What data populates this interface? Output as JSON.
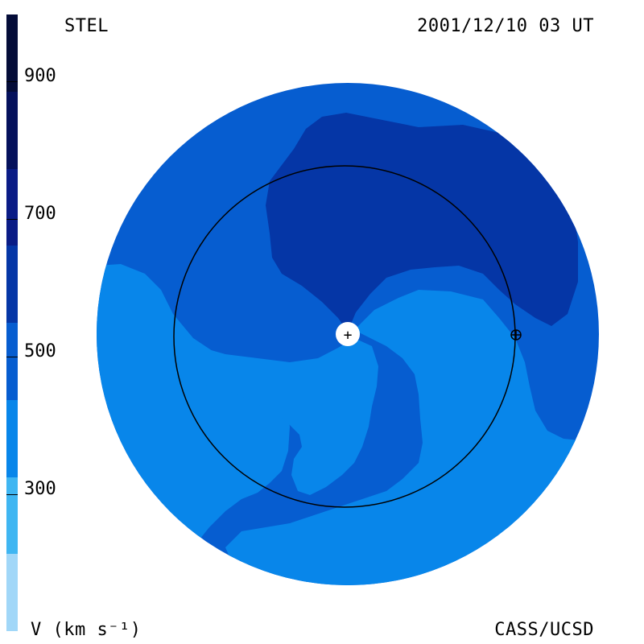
{
  "labels": {
    "left": "STEL",
    "right": "2001/12/10 03 UT",
    "bottom_left": "V (km s⁻¹)",
    "bottom_right": "CASS/UCSD"
  },
  "colorbar": {
    "levels": [
      {
        "color": "#040c38"
      },
      {
        "color": "#05115c"
      },
      {
        "color": "#0a1c86"
      },
      {
        "color": "#0536a6"
      },
      {
        "color": "#065dd0"
      },
      {
        "color": "#0886ea"
      },
      {
        "color": "#3fb6f2"
      },
      {
        "color": "#a1d7f8"
      }
    ],
    "ticks": [
      {
        "label": "900",
        "value": 900
      },
      {
        "label": "700",
        "value": 700
      },
      {
        "label": "500",
        "value": 500
      },
      {
        "label": "300",
        "value": 300
      }
    ]
  },
  "map_colors": {
    "background_disk": "#065dd0",
    "high_speed": "#0536a6",
    "low_speed": "#0886ea",
    "sun": "#ffffff",
    "orbit": "#000000"
  },
  "markers": {
    "sun_symbol": "+",
    "earth_symbol": "⊕"
  }
}
